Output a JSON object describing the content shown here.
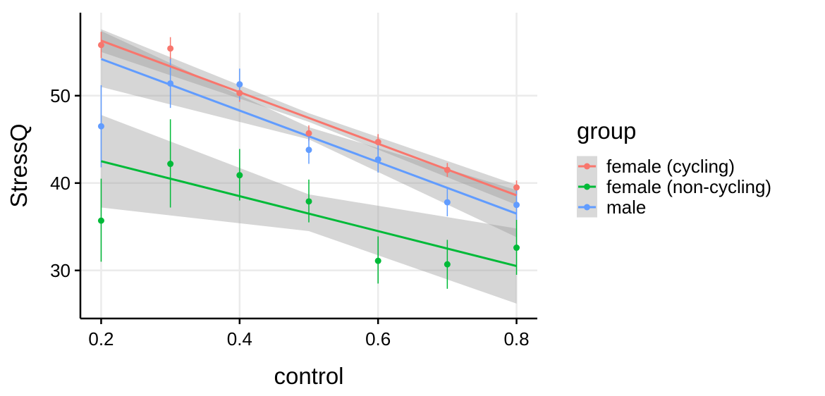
{
  "chart_data": {
    "type": "scatter",
    "xlabel": "control",
    "ylabel": "StressQ",
    "xlim": [
      0.17,
      0.83
    ],
    "ylim": [
      24.5,
      59.5
    ],
    "x_ticks": [
      0.2,
      0.4,
      0.6,
      0.8
    ],
    "x_tick_labels": [
      "0.2",
      "0.4",
      "0.6",
      "0.8"
    ],
    "y_ticks": [
      30,
      40,
      50
    ],
    "y_tick_labels": [
      "30",
      "40",
      "50"
    ],
    "grid": true,
    "legend": {
      "title": "group",
      "position": "right"
    },
    "series": [
      {
        "name": "female (cycling)",
        "color": "#F8766D",
        "points": [
          {
            "x": 0.2,
            "y": 55.8,
            "low": 54.3,
            "high": 57.3
          },
          {
            "x": 0.3,
            "y": 55.4,
            "low": 54.0,
            "high": 56.7
          },
          {
            "x": 0.4,
            "y": 50.3,
            "low": 49.3,
            "high": 51.4
          },
          {
            "x": 0.5,
            "y": 45.7,
            "low": 44.8,
            "high": 46.6
          },
          {
            "x": 0.6,
            "y": 44.7,
            "low": 43.7,
            "high": 45.6
          },
          {
            "x": 0.7,
            "y": 41.5,
            "low": 40.7,
            "high": 42.3
          },
          {
            "x": 0.8,
            "y": 39.5,
            "low": 38.6,
            "high": 40.3
          }
        ],
        "trend": {
          "x": [
            0.2,
            0.8
          ],
          "y": [
            56.3,
            38.6
          ]
        },
        "band": {
          "x": [
            0.2,
            0.5,
            0.8
          ],
          "low": [
            55.0,
            47.0,
            37.5
          ],
          "high": [
            57.6,
            48.0,
            39.8
          ]
        }
      },
      {
        "name": "female (non-cycling)",
        "color": "#00BA38",
        "points": [
          {
            "x": 0.2,
            "y": 35.7,
            "low": 31.0,
            "high": 40.5
          },
          {
            "x": 0.3,
            "y": 42.2,
            "low": 37.2,
            "high": 47.3
          },
          {
            "x": 0.4,
            "y": 40.9,
            "low": 38.0,
            "high": 43.9
          },
          {
            "x": 0.5,
            "y": 37.9,
            "low": 35.5,
            "high": 40.4
          },
          {
            "x": 0.6,
            "y": 31.1,
            "low": 28.5,
            "high": 33.9
          },
          {
            "x": 0.7,
            "y": 30.7,
            "low": 27.9,
            "high": 33.5
          },
          {
            "x": 0.8,
            "y": 32.6,
            "low": 29.5,
            "high": 35.8
          }
        ],
        "trend": {
          "x": [
            0.2,
            0.8
          ],
          "y": [
            42.5,
            30.5
          ]
        },
        "band": {
          "x": [
            0.2,
            0.5,
            0.8
          ],
          "low": [
            37.2,
            34.5,
            26.2
          ],
          "high": [
            47.8,
            38.7,
            34.8
          ]
        }
      },
      {
        "name": "male",
        "color": "#619CFF",
        "points": [
          {
            "x": 0.2,
            "y": 46.5,
            "low": 41.8,
            "high": 51.2
          },
          {
            "x": 0.3,
            "y": 51.4,
            "low": 48.6,
            "high": 54.2
          },
          {
            "x": 0.4,
            "y": 51.3,
            "low": 49.5,
            "high": 53.1
          },
          {
            "x": 0.5,
            "y": 43.8,
            "low": 42.2,
            "high": 45.5
          },
          {
            "x": 0.6,
            "y": 42.7,
            "low": 41.2,
            "high": 44.3
          },
          {
            "x": 0.7,
            "y": 37.8,
            "low": 36.2,
            "high": 39.4
          },
          {
            "x": 0.8,
            "y": 37.5,
            "low": 35.8,
            "high": 39.2
          }
        ],
        "trend": {
          "x": [
            0.2,
            0.8
          ],
          "y": [
            54.2,
            36.5
          ]
        },
        "band": {
          "x": [
            0.2,
            0.5,
            0.8
          ],
          "low": [
            51.0,
            45.0,
            33.8
          ],
          "high": [
            57.4,
            46.4,
            39.2
          ]
        }
      }
    ]
  }
}
